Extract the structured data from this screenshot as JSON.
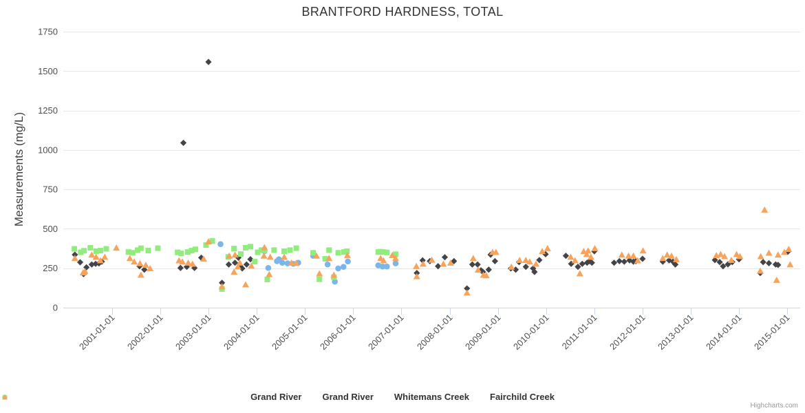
{
  "title": "BRANTFORD HARDNESS, TOTAL",
  "credits": "Highcharts.com",
  "y_axis": {
    "title": "Measurements (mg/L)",
    "ticks": [
      0,
      250,
      500,
      750,
      1000,
      1250,
      1500,
      1750
    ]
  },
  "x_axis": {
    "ticks": [
      "2001-01-01",
      "2002-01-01",
      "2003-01-01",
      "2004-01-01",
      "2005-01-01",
      "2006-01-01",
      "2007-01-01",
      "2008-01-01",
      "2009-01-01",
      "2010-01-01",
      "2011-01-01",
      "2012-01-01",
      "2013-01-01",
      "2014-01-01",
      "2015-01-01"
    ]
  },
  "colors": {
    "grid": "#e6e6e6",
    "axis_line": "#ccd6eb",
    "tick": "#ccd6eb",
    "series_blue": "#7cb5ec",
    "series_dark": "#434348",
    "series_green": "#90ed7d",
    "series_orange": "#f7a35c"
  },
  "chart_data": {
    "type": "scatter",
    "title": "BRANTFORD HARDNESS, TOTAL",
    "xlabel": "",
    "ylabel": "Measurements (mg/L)",
    "ylim": [
      0,
      1750
    ],
    "xlim_years": [
      2000,
      2015.35
    ],
    "x_unit": "decimal_year",
    "grid": "horizontal",
    "legend_position": "bottom",
    "series": [
      {
        "name": "Grand River",
        "marker": "circle",
        "color": "#7cb5ec",
        "points": [
          [
            2003.25,
            403
          ],
          [
            2004.16,
            358
          ],
          [
            2004.24,
            252
          ],
          [
            2004.42,
            295
          ],
          [
            2004.46,
            307
          ],
          [
            2004.53,
            285
          ],
          [
            2004.64,
            281
          ],
          [
            2004.76,
            278
          ],
          [
            2004.86,
            285
          ],
          [
            2005.17,
            329
          ],
          [
            2005.47,
            274
          ],
          [
            2005.62,
            165
          ],
          [
            2005.69,
            249
          ],
          [
            2005.8,
            259
          ],
          [
            2005.89,
            293
          ],
          [
            2006.52,
            268
          ],
          [
            2006.61,
            261
          ],
          [
            2006.7,
            261
          ],
          [
            2006.88,
            281
          ]
        ]
      },
      {
        "name": "Grand River",
        "marker": "diamond",
        "color": "#434348",
        "points": [
          [
            2000.23,
            336
          ],
          [
            2000.34,
            288
          ],
          [
            2000.41,
            213
          ],
          [
            2000.47,
            256
          ],
          [
            2000.58,
            274
          ],
          [
            2000.66,
            278
          ],
          [
            2000.73,
            281
          ],
          [
            2000.79,
            292
          ],
          [
            2001.57,
            263
          ],
          [
            2001.67,
            241
          ],
          [
            2002.42,
            252
          ],
          [
            2002.48,
            1045
          ],
          [
            2002.55,
            259
          ],
          [
            2002.71,
            252
          ],
          [
            2002.85,
            317
          ],
          [
            2003.0,
            1558
          ],
          [
            2003.28,
            158
          ],
          [
            2003.42,
            274
          ],
          [
            2003.55,
            285
          ],
          [
            2003.62,
            317
          ],
          [
            2003.66,
            263
          ],
          [
            2003.7,
            249
          ],
          [
            2003.79,
            274
          ],
          [
            2003.87,
            307
          ],
          [
            2007.32,
            220
          ],
          [
            2007.44,
            300
          ],
          [
            2007.59,
            295
          ],
          [
            2007.76,
            263
          ],
          [
            2007.9,
            320
          ],
          [
            2008.09,
            295
          ],
          [
            2008.36,
            122
          ],
          [
            2008.47,
            274
          ],
          [
            2008.58,
            274
          ],
          [
            2008.65,
            237
          ],
          [
            2008.69,
            227
          ],
          [
            2008.81,
            241
          ],
          [
            2008.85,
            336
          ],
          [
            2008.94,
            295
          ],
          [
            2009.27,
            249
          ],
          [
            2009.37,
            241
          ],
          [
            2009.44,
            289
          ],
          [
            2009.58,
            259
          ],
          [
            2009.73,
            249
          ],
          [
            2009.76,
            227
          ],
          [
            2009.86,
            302
          ],
          [
            2009.99,
            339
          ],
          [
            2010.41,
            329
          ],
          [
            2010.52,
            278
          ],
          [
            2010.66,
            259
          ],
          [
            2010.75,
            278
          ],
          [
            2010.85,
            285
          ],
          [
            2010.9,
            295
          ],
          [
            2010.95,
            285
          ],
          [
            2011.0,
            358
          ],
          [
            2011.41,
            285
          ],
          [
            2011.52,
            295
          ],
          [
            2011.62,
            292
          ],
          [
            2011.73,
            300
          ],
          [
            2011.81,
            292
          ],
          [
            2011.86,
            295
          ],
          [
            2012.0,
            310
          ],
          [
            2012.42,
            292
          ],
          [
            2012.55,
            300
          ],
          [
            2012.63,
            292
          ],
          [
            2012.68,
            274
          ],
          [
            2013.5,
            302
          ],
          [
            2013.6,
            289
          ],
          [
            2013.67,
            263
          ],
          [
            2013.77,
            275
          ],
          [
            2013.86,
            289
          ],
          [
            2014.0,
            307
          ],
          [
            2014.44,
            220
          ],
          [
            2014.5,
            289
          ],
          [
            2014.62,
            282
          ],
          [
            2014.76,
            274
          ],
          [
            2014.81,
            271
          ],
          [
            2015.01,
            354
          ]
        ]
      },
      {
        "name": "Whitemans Creek",
        "marker": "square",
        "color": "#90ed7d",
        "points": [
          [
            2000.22,
            373
          ],
          [
            2000.35,
            351
          ],
          [
            2000.42,
            361
          ],
          [
            2000.55,
            380
          ],
          [
            2000.67,
            358
          ],
          [
            2000.76,
            362
          ],
          [
            2000.88,
            373
          ],
          [
            2001.34,
            353
          ],
          [
            2001.43,
            348
          ],
          [
            2001.53,
            365
          ],
          [
            2001.6,
            377
          ],
          [
            2001.75,
            362
          ],
          [
            2001.95,
            377
          ],
          [
            2002.36,
            351
          ],
          [
            2002.43,
            344
          ],
          [
            2002.57,
            353
          ],
          [
            2002.65,
            362
          ],
          [
            2002.73,
            370
          ],
          [
            2002.95,
            397
          ],
          [
            2003.08,
            423
          ],
          [
            2003.28,
            118
          ],
          [
            2003.41,
            322
          ],
          [
            2003.53,
            375
          ],
          [
            2003.67,
            340
          ],
          [
            2003.77,
            380
          ],
          [
            2003.87,
            387
          ],
          [
            2003.96,
            292
          ],
          [
            2004.02,
            351
          ],
          [
            2004.1,
            365
          ],
          [
            2004.16,
            362
          ],
          [
            2004.22,
            179
          ],
          [
            2004.36,
            365
          ],
          [
            2004.57,
            358
          ],
          [
            2004.69,
            365
          ],
          [
            2004.82,
            377
          ],
          [
            2005.17,
            348
          ],
          [
            2005.3,
            180
          ],
          [
            2005.42,
            310
          ],
          [
            2005.5,
            365
          ],
          [
            2005.6,
            193
          ],
          [
            2005.69,
            348
          ],
          [
            2005.81,
            353
          ],
          [
            2005.87,
            358
          ],
          [
            2006.52,
            353
          ],
          [
            2006.57,
            355
          ],
          [
            2006.63,
            353
          ],
          [
            2006.7,
            350
          ],
          [
            2006.88,
            339
          ]
        ]
      },
      {
        "name": "Fairchild Creek",
        "marker": "triangle",
        "color": "#f7a35c",
        "points": [
          [
            2000.23,
            314
          ],
          [
            2000.4,
            223
          ],
          [
            2000.44,
            231
          ],
          [
            2000.58,
            336
          ],
          [
            2000.67,
            322
          ],
          [
            2000.76,
            300
          ],
          [
            2000.85,
            322
          ],
          [
            2001.09,
            380
          ],
          [
            2001.37,
            314
          ],
          [
            2001.46,
            292
          ],
          [
            2001.58,
            281
          ],
          [
            2001.6,
            208
          ],
          [
            2001.7,
            271
          ],
          [
            2001.79,
            249
          ],
          [
            2002.39,
            300
          ],
          [
            2002.46,
            292
          ],
          [
            2002.58,
            285
          ],
          [
            2002.67,
            278
          ],
          [
            2002.9,
            310
          ],
          [
            2003.0,
            420
          ],
          [
            2003.28,
            135
          ],
          [
            2003.43,
            329
          ],
          [
            2003.53,
            227
          ],
          [
            2003.55,
            336
          ],
          [
            2003.61,
            261
          ],
          [
            2003.65,
            285
          ],
          [
            2003.77,
            147
          ],
          [
            2003.89,
            266
          ],
          [
            2004.15,
            329
          ],
          [
            2004.16,
            383
          ],
          [
            2004.26,
            212
          ],
          [
            2004.28,
            322
          ],
          [
            2004.57,
            322
          ],
          [
            2004.72,
            285
          ],
          [
            2004.82,
            283
          ],
          [
            2005.24,
            329
          ],
          [
            2005.3,
            217
          ],
          [
            2005.5,
            314
          ],
          [
            2005.6,
            208
          ],
          [
            2005.88,
            333
          ],
          [
            2006.57,
            314
          ],
          [
            2006.63,
            300
          ],
          [
            2006.81,
            333
          ],
          [
            2006.88,
            314
          ],
          [
            2007.31,
            263
          ],
          [
            2007.32,
            199
          ],
          [
            2007.45,
            278
          ],
          [
            2007.63,
            303
          ],
          [
            2007.87,
            278
          ],
          [
            2008.02,
            285
          ],
          [
            2008.36,
            95
          ],
          [
            2008.49,
            314
          ],
          [
            2008.59,
            241
          ],
          [
            2008.7,
            208
          ],
          [
            2008.76,
            205
          ],
          [
            2008.89,
            353
          ],
          [
            2008.96,
            353
          ],
          [
            2009.28,
            259
          ],
          [
            2009.45,
            302
          ],
          [
            2009.58,
            302
          ],
          [
            2009.66,
            292
          ],
          [
            2009.79,
            278
          ],
          [
            2009.92,
            358
          ],
          [
            2010.03,
            377
          ],
          [
            2010.51,
            322
          ],
          [
            2010.6,
            300
          ],
          [
            2010.7,
            217
          ],
          [
            2010.78,
            358
          ],
          [
            2010.84,
            339
          ],
          [
            2010.87,
            362
          ],
          [
            2010.93,
            322
          ],
          [
            2011.01,
            377
          ],
          [
            2011.57,
            336
          ],
          [
            2011.71,
            329
          ],
          [
            2011.81,
            329
          ],
          [
            2011.9,
            300
          ],
          [
            2012.01,
            362
          ],
          [
            2012.42,
            314
          ],
          [
            2012.51,
            336
          ],
          [
            2012.6,
            329
          ],
          [
            2012.7,
            307
          ],
          [
            2013.53,
            332
          ],
          [
            2013.62,
            339
          ],
          [
            2013.7,
            326
          ],
          [
            2013.84,
            302
          ],
          [
            2013.95,
            339
          ],
          [
            2014.02,
            326
          ],
          [
            2014.44,
            234
          ],
          [
            2014.45,
            326
          ],
          [
            2014.53,
            621
          ],
          [
            2014.62,
            348
          ],
          [
            2014.78,
            176
          ],
          [
            2014.81,
            336
          ],
          [
            2014.94,
            353
          ],
          [
            2015.03,
            372
          ],
          [
            2015.06,
            274
          ]
        ]
      }
    ]
  }
}
